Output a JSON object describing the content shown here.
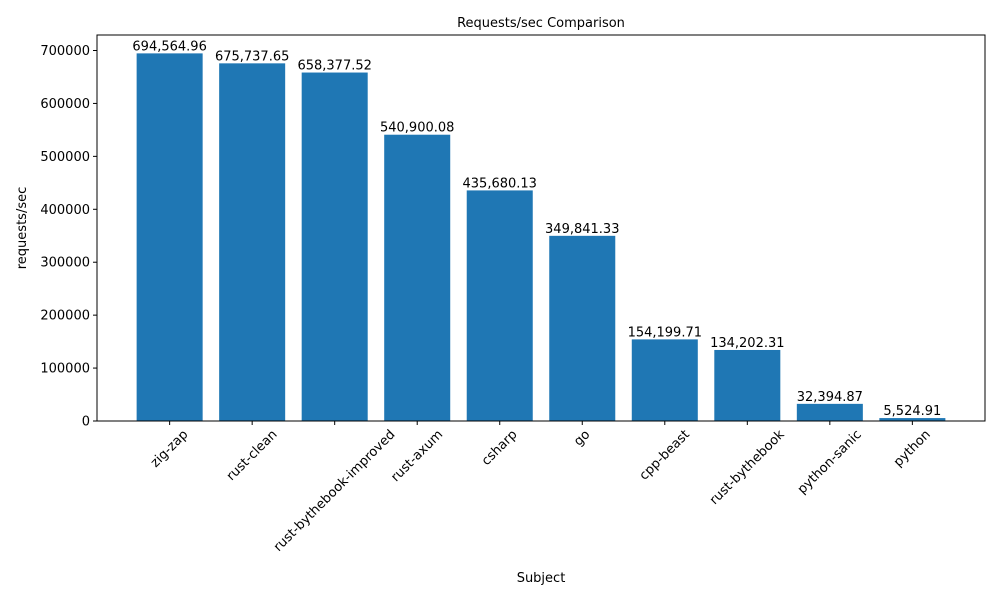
{
  "chart_data": {
    "type": "bar",
    "title": "Requests/sec Comparison",
    "xlabel": "Subject",
    "ylabel": "requests/sec",
    "categories": [
      "zig-zap",
      "rust-clean",
      "rust-bythebook-improved",
      "rust-axum",
      "csharp",
      "go",
      "cpp-beast",
      "rust-bythebook",
      "python-sanic",
      "python"
    ],
    "values": [
      694564.96,
      675737.65,
      658377.52,
      540900.08,
      435680.13,
      349841.33,
      154199.71,
      134202.31,
      32394.87,
      5524.91
    ],
    "data_labels": [
      "694,564.96",
      "675,737.65",
      "658,377.52",
      "540,900.08",
      "435,680.13",
      "349,841.33",
      "154,199.71",
      "134,202.31",
      "32,394.87",
      "5,524.91"
    ],
    "yticks": [
      0,
      100000,
      200000,
      300000,
      400000,
      500000,
      600000,
      700000
    ],
    "ylim": [
      0,
      729293
    ],
    "grid": false,
    "bar_color": "#1f77b4",
    "xtick_rotation": 45
  }
}
